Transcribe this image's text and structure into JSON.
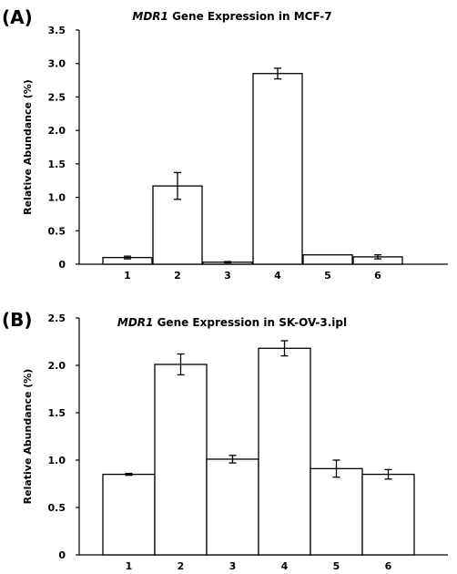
{
  "chart_data": [
    {
      "type": "bar",
      "panel_label": "(A)",
      "title_gene": "MDR1",
      "title_rest": " Gene Expression in MCF-7",
      "ylabel": "Relative Abundance (%)",
      "xlabel": "",
      "categories": [
        "1",
        "2",
        "3",
        "4",
        "5",
        "6"
      ],
      "values": [
        0.1,
        1.17,
        0.03,
        2.85,
        0.14,
        0.11
      ],
      "errors": [
        0.02,
        0.2,
        0.01,
        0.08,
        0.0,
        0.03
      ],
      "ylim": [
        0,
        3.5
      ],
      "yticks": [
        "0",
        "0.5",
        "1.0",
        "1.5",
        "2.0",
        "2.5",
        "3.0",
        "3.5"
      ],
      "grid": false
    },
    {
      "type": "bar",
      "panel_label": "(B)",
      "title_gene": "MDR1",
      "title_rest": " Gene Expression in SK-OV-3.ipl",
      "ylabel": "Relative Abundance (%)",
      "xlabel": "",
      "categories": [
        "1",
        "2",
        "3",
        "4",
        "5",
        "6"
      ],
      "values": [
        0.85,
        2.01,
        1.01,
        2.18,
        0.91,
        0.85
      ],
      "errors": [
        0.01,
        0.11,
        0.04,
        0.08,
        0.09,
        0.05
      ],
      "ylim": [
        0,
        2.5
      ],
      "yticks": [
        "0",
        "0.5",
        "1.0",
        "1.5",
        "2.0",
        "2.5"
      ],
      "grid": false
    }
  ]
}
